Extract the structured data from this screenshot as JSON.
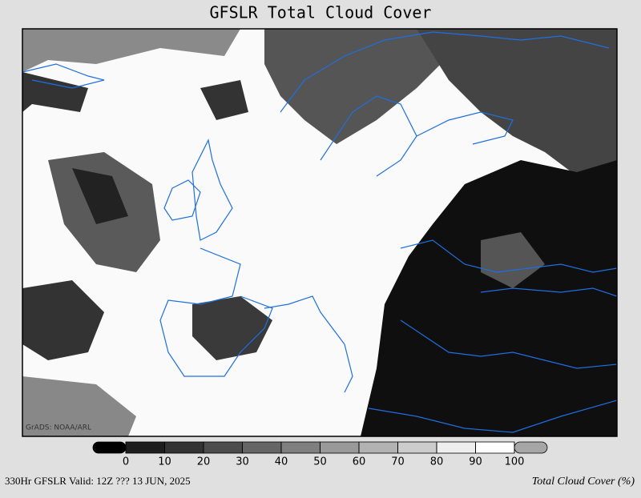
{
  "header": {
    "title": "GFSLR Total Cloud Cover"
  },
  "map": {
    "credit": "GrADS: NOAA/ARL",
    "coast_color": "#1e6fe0"
  },
  "colorbar": {
    "ticks": [
      0,
      10,
      20,
      30,
      40,
      50,
      60,
      70,
      80,
      90,
      100
    ],
    "colors": [
      "#000000",
      "#1e1e1e",
      "#333333",
      "#4c4c4c",
      "#666666",
      "#7f7f7f",
      "#999999",
      "#b2b2b2",
      "#cccccc",
      "#eeeeee",
      "#ffffff",
      "#a6a6a6"
    ]
  },
  "footer": {
    "left": "330Hr GFSLR Valid: 12Z ??? 13 JUN, 2025",
    "right": "Total Cloud Cover (%)"
  }
}
